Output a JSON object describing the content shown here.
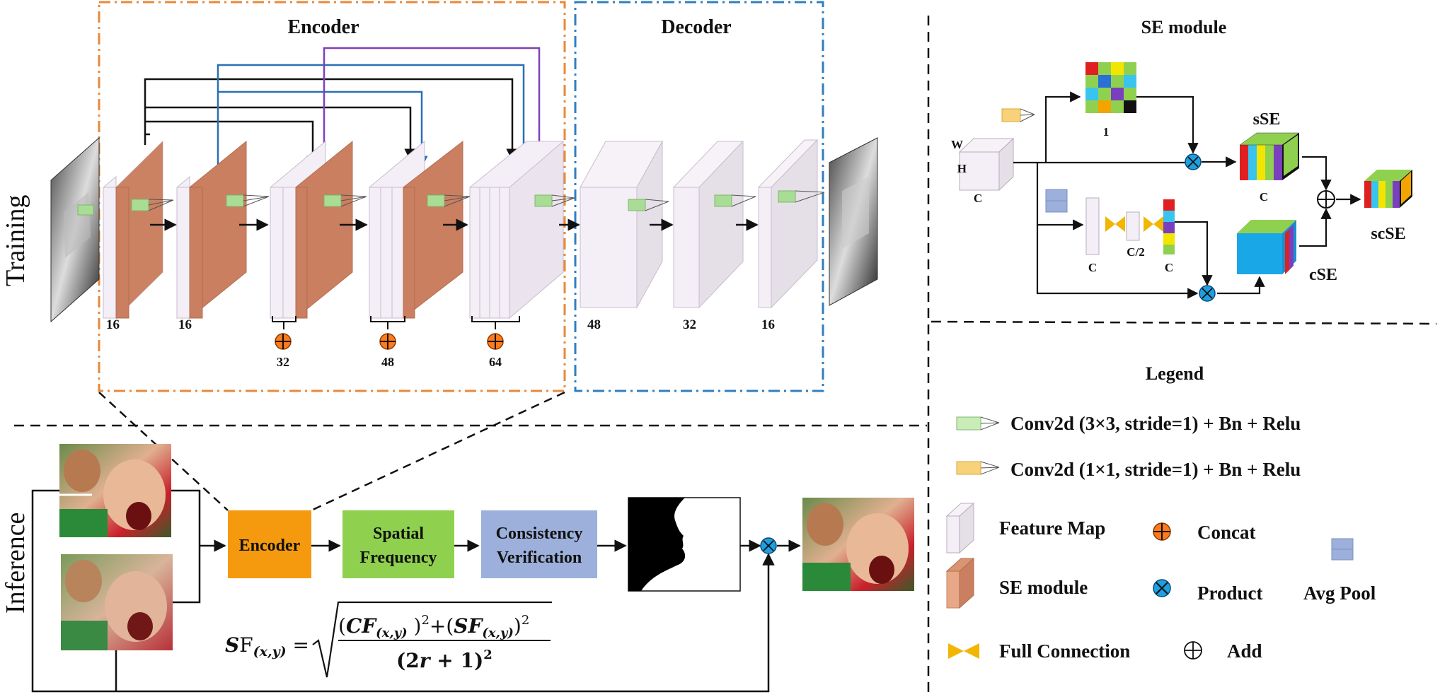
{
  "training": {
    "side_label": "Training",
    "encoder_title": "Encoder",
    "decoder_title": "Decoder",
    "encoder_channels": [
      "16",
      "16"
    ],
    "concat_channels": [
      "32",
      "48",
      "64"
    ],
    "decoder_channels": [
      "48",
      "32",
      "16"
    ]
  },
  "se_module": {
    "title": "SE module",
    "dim_w": "W",
    "dim_h": "H",
    "dim_c": "C",
    "spatial_channels": "1",
    "sse_label": "sSE",
    "sse_c": "C",
    "fc_c1": "C",
    "fc_c2": "C/2",
    "fc_c3": "C",
    "cse_label": "cSE",
    "scse_label": "scSE"
  },
  "legend": {
    "title": "Legend",
    "conv3": "Conv2d (3×3, stride=1) + Bn + Relu",
    "conv1": "Conv2d (1×1, stride=1) + Bn + Relu",
    "feature_map": "Feature Map",
    "concat": "Concat",
    "se_module": "SE module",
    "product": "Product",
    "avg_pool": "Avg Pool",
    "full_connection": "Full Connection",
    "add": "Add"
  },
  "inference": {
    "side_label": "Inference",
    "encoder_box": "Encoder",
    "spatial_box": [
      "Spatial",
      "Frequency"
    ],
    "consistency_box": [
      "Consistency",
      "Verification"
    ]
  },
  "colors": {
    "encoder_border": "#e8893a",
    "decoder_border": "#2f7fc0",
    "se_block": "#c97f60",
    "feature_map": "#f4eef6",
    "encoder_box": "#f59a0e",
    "spatial_box": "#8fd14f",
    "consistency_box": "#9db0db",
    "concat": "#ff7a1a",
    "product": "#1ea0e0",
    "skip_black": "#111111",
    "skip_blue": "#2a6fb5",
    "skip_purple": "#7f3fbf",
    "cse_block": "#1aa7e8"
  },
  "icons": [
    "conv3x3-icon",
    "conv1x1-icon",
    "feature-map-icon",
    "concat-icon",
    "se-module-icon",
    "product-icon",
    "avg-pool-icon",
    "full-connection-icon",
    "add-icon"
  ]
}
